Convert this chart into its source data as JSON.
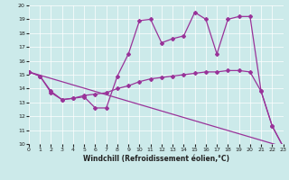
{
  "xlabel": "Windchill (Refroidissement éolien,°C)",
  "xlim": [
    0,
    23
  ],
  "ylim": [
    10,
    20
  ],
  "xticks": [
    0,
    1,
    2,
    3,
    4,
    5,
    6,
    7,
    8,
    9,
    10,
    11,
    12,
    13,
    14,
    15,
    16,
    17,
    18,
    19,
    20,
    21,
    22,
    23
  ],
  "yticks": [
    10,
    11,
    12,
    13,
    14,
    15,
    16,
    17,
    18,
    19,
    20
  ],
  "bg_color": "#cceaea",
  "line_color": "#993399",
  "line1_x": [
    0,
    1,
    2,
    3,
    4,
    5,
    6,
    7,
    8,
    9,
    10,
    11,
    12,
    13,
    14,
    15,
    16,
    17,
    18,
    19,
    20,
    21,
    22,
    23
  ],
  "line1_y": [
    15.2,
    14.9,
    13.7,
    13.2,
    13.3,
    13.4,
    12.6,
    12.6,
    14.9,
    16.5,
    18.9,
    19.0,
    17.3,
    17.6,
    17.8,
    19.5,
    19.0,
    16.5,
    19.0,
    19.2,
    19.2,
    13.8,
    11.3,
    9.8
  ],
  "line2_x": [
    0,
    1,
    2,
    3,
    4,
    5,
    6,
    7,
    8,
    9,
    10,
    11,
    12,
    13,
    14,
    15,
    16,
    17,
    18,
    19,
    20,
    21,
    22,
    23
  ],
  "line2_y": [
    15.2,
    14.9,
    13.8,
    13.2,
    13.3,
    13.5,
    13.6,
    13.7,
    14.0,
    14.2,
    14.5,
    14.7,
    14.8,
    14.9,
    15.0,
    15.1,
    15.2,
    15.2,
    15.3,
    15.3,
    15.2,
    13.8,
    11.3,
    9.8
  ],
  "line3_x": [
    0,
    23
  ],
  "line3_y": [
    15.2,
    9.8
  ]
}
